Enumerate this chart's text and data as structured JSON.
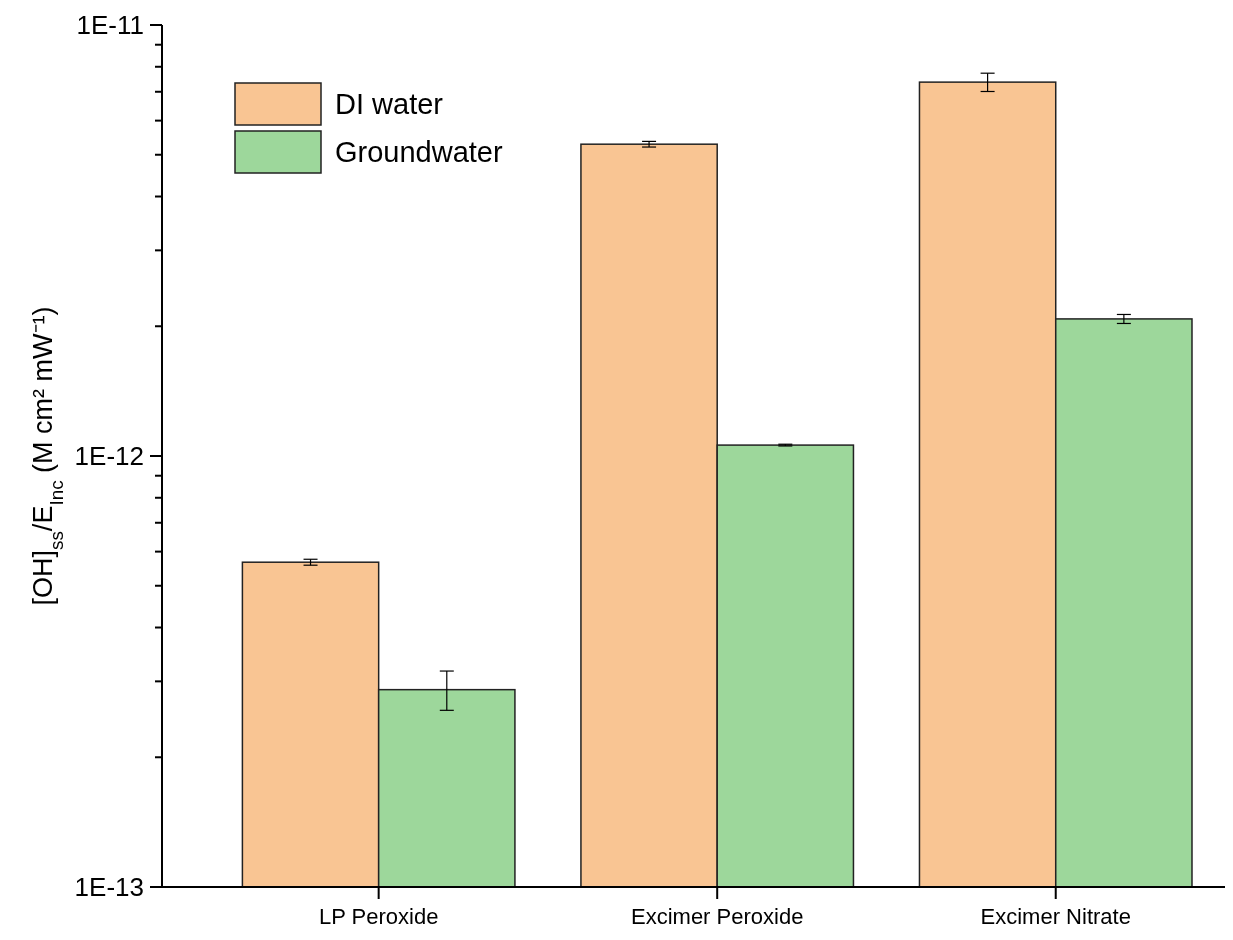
{
  "chart_data": {
    "type": "bar",
    "ylabel": "[OH]$_{ss}$/E$_{Inc}$ (M cm² mW⁻¹)",
    "categories": [
      "LP Peroxide",
      "Excimer Peroxide",
      "Excimer Nitrate"
    ],
    "series": [
      {
        "name": "DI water",
        "color": "#f9c593",
        "values": [
          5.67e-13,
          5.29e-12,
          7.37e-12
        ],
        "errors": [
          9e-15,
          8e-14,
          3.6e-13
        ]
      },
      {
        "name": "Groundwater",
        "color": "#9dd79b",
        "values": [
          2.87e-13,
          1.06e-12,
          2.08e-12
        ],
        "errors": [
          3e-14,
          5e-15,
          5e-14
        ]
      }
    ],
    "log": true,
    "ylim": [
      1e-13,
      1e-11
    ],
    "yticks": [
      {
        "value": 1e-13,
        "label": "1E-13"
      },
      {
        "value": 2e-13,
        "label": null
      },
      {
        "value": 3e-13,
        "label": null
      },
      {
        "value": 4e-13,
        "label": null
      },
      {
        "value": 5e-13,
        "label": null
      },
      {
        "value": 6e-13,
        "label": null
      },
      {
        "value": 7e-13,
        "label": null
      },
      {
        "value": 8e-13,
        "label": null
      },
      {
        "value": 9e-13,
        "label": null
      },
      {
        "value": 1e-12,
        "label": "1E-12"
      },
      {
        "value": 2e-12,
        "label": null
      },
      {
        "value": 3e-12,
        "label": null
      },
      {
        "value": 4e-12,
        "label": null
      },
      {
        "value": 5e-12,
        "label": null
      },
      {
        "value": 6e-12,
        "label": null
      },
      {
        "value": 7e-12,
        "label": null
      },
      {
        "value": 8e-12,
        "label": null
      },
      {
        "value": 9e-12,
        "label": null
      },
      {
        "value": 1e-11,
        "label": "1E-11"
      }
    ],
    "legend": "top left"
  }
}
